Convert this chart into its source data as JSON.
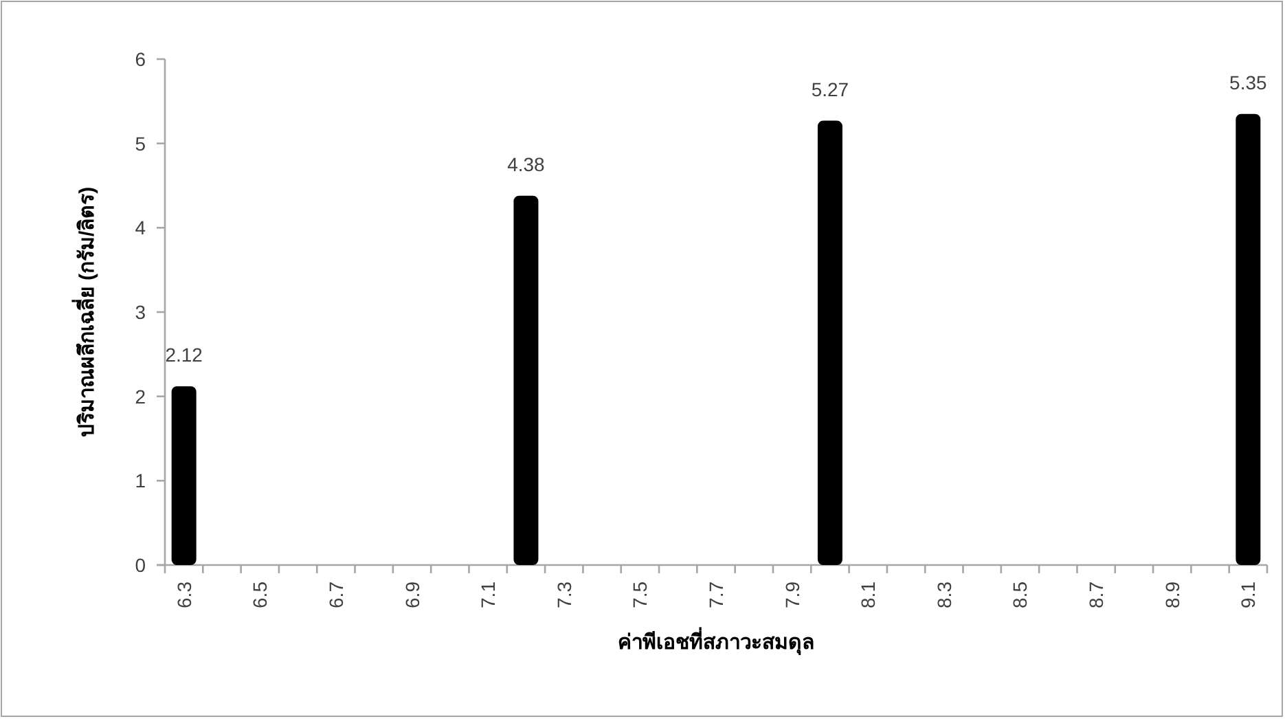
{
  "chart_data": {
    "type": "bar",
    "xlabel": "ค่าพีเอชที่สภาวะสมดุล",
    "ylabel": "ปริมาณผลึกเฉลี่ย (กรัม/ลิตร)",
    "categories": [
      "6.3",
      null,
      "6.5",
      null,
      "6.7",
      null,
      "6.9",
      null,
      "7.1",
      null,
      "7.3",
      null,
      "7.5",
      null,
      "7.7",
      null,
      "7.9",
      null,
      "8.1",
      null,
      "8.3",
      null,
      "8.5",
      null,
      "8.7",
      null,
      "8.9",
      null,
      "9.1"
    ],
    "values": [
      2.12,
      null,
      null,
      null,
      null,
      null,
      null,
      null,
      null,
      4.38,
      null,
      null,
      null,
      null,
      null,
      null,
      null,
      5.27,
      null,
      null,
      null,
      null,
      null,
      null,
      null,
      null,
      null,
      null,
      5.35
    ],
    "color": "#000000",
    "ylim": [
      0,
      6
    ],
    "yticks": [
      0,
      1,
      2,
      3,
      4,
      5,
      6
    ],
    "data_labels": true,
    "grid": false
  }
}
